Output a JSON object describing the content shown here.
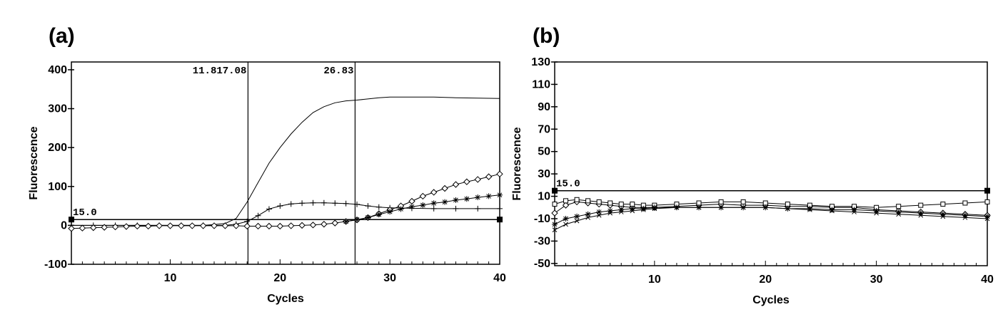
{
  "panels": {
    "a": {
      "label": "(a)"
    },
    "b": {
      "label": "(b)"
    }
  },
  "chart_data": [
    {
      "type": "line",
      "panel": "(a)",
      "xlabel": "Cycles",
      "ylabel": "Fluorescence",
      "xlim": [
        1,
        40
      ],
      "ylim": [
        -100,
        420
      ],
      "x_ticks": [
        10,
        20,
        30,
        40
      ],
      "y_ticks": [
        400,
        300,
        200,
        100,
        0,
        -100
      ],
      "y_tick_labels": [
        "400",
        "300",
        "200",
        "100",
        "0",
        "-100"
      ],
      "threshold": {
        "value": 15.0,
        "label": "15.0"
      },
      "ct_lines": [
        {
          "x": 17.08,
          "label": "11.817.08"
        },
        {
          "x": 26.83,
          "label": "26.83"
        }
      ],
      "series": [
        {
          "marker": "none",
          "x": [
            1,
            3,
            5,
            7,
            9,
            11,
            13,
            14,
            15,
            16,
            17,
            18,
            19,
            20,
            21,
            22,
            23,
            24,
            25,
            26,
            27,
            28,
            29,
            30,
            32,
            34,
            36,
            38,
            40
          ],
          "y": [
            0,
            0,
            0,
            0,
            0,
            0,
            0,
            2,
            5,
            18,
            60,
            110,
            160,
            200,
            235,
            265,
            290,
            305,
            315,
            320,
            322,
            325,
            328,
            330,
            330,
            330,
            328,
            327,
            326
          ]
        },
        {
          "marker": "plus",
          "x": [
            1,
            3,
            5,
            7,
            9,
            11,
            13,
            15,
            16,
            17,
            18,
            19,
            20,
            21,
            22,
            23,
            24,
            25,
            26,
            27,
            28,
            29,
            30,
            32,
            34,
            36,
            38,
            40
          ],
          "y": [
            0,
            0,
            0,
            0,
            0,
            0,
            0,
            0,
            3,
            10,
            25,
            42,
            50,
            55,
            57,
            58,
            58,
            57,
            56,
            54,
            50,
            47,
            45,
            44,
            43,
            43,
            43,
            43
          ]
        },
        {
          "marker": "diamond",
          "x": [
            1,
            2,
            3,
            4,
            5,
            6,
            7,
            8,
            9,
            10,
            11,
            12,
            13,
            14,
            15,
            16,
            17,
            18,
            19,
            20,
            21,
            22,
            23,
            24,
            25,
            26,
            27,
            28,
            29,
            30,
            31,
            32,
            33,
            34,
            35,
            36,
            37,
            38,
            39,
            40
          ],
          "y": [
            -8,
            -7,
            -6,
            -5,
            -4,
            -3,
            -2,
            -2,
            -1,
            -1,
            -1,
            -1,
            -1,
            -1,
            -1,
            -1,
            -2,
            -2,
            -2,
            -2,
            -1,
            0,
            1,
            3,
            6,
            10,
            14,
            20,
            30,
            40,
            50,
            62,
            75,
            85,
            95,
            105,
            112,
            118,
            125,
            132
          ]
        },
        {
          "marker": "star",
          "x": [
            26,
            27,
            28,
            29,
            30,
            31,
            32,
            33,
            34,
            35,
            36,
            37,
            38,
            39,
            40
          ],
          "y": [
            10,
            15,
            20,
            28,
            35,
            42,
            48,
            52,
            57,
            60,
            65,
            68,
            72,
            75,
            78
          ]
        }
      ]
    },
    {
      "type": "line",
      "panel": "(b)",
      "xlabel": "Cycles",
      "ylabel": "Fluorescence",
      "xlim": [
        1,
        40
      ],
      "ylim": [
        -52,
        130
      ],
      "x_ticks": [
        10,
        20,
        30,
        40
      ],
      "y_ticks": [
        130,
        110,
        90,
        70,
        50,
        30,
        10,
        -10,
        -30,
        -50
      ],
      "y_tick_labels": [
        "130",
        "110",
        "90",
        "70",
        "50",
        "30",
        "10",
        "-10",
        "-30",
        "-50"
      ],
      "threshold": {
        "value": 15.0,
        "label": "15.0"
      },
      "series": [
        {
          "marker": "diamond",
          "x": [
            1,
            2,
            3,
            4,
            5,
            6,
            7,
            8,
            9,
            10,
            12,
            14,
            16,
            18,
            20,
            22,
            24,
            26,
            28,
            30,
            32,
            34,
            36,
            38,
            40
          ],
          "y": [
            -5,
            2,
            5,
            4,
            3,
            2,
            1,
            0,
            0,
            0,
            1,
            2,
            3,
            2,
            2,
            1,
            1,
            0,
            0,
            -2,
            -3,
            -4,
            -5,
            -6,
            -7
          ]
        },
        {
          "marker": "square",
          "x": [
            1,
            2,
            3,
            4,
            5,
            6,
            7,
            8,
            9,
            10,
            12,
            14,
            16,
            18,
            20,
            22,
            24,
            26,
            28,
            30,
            32,
            34,
            36,
            38,
            40
          ],
          "y": [
            3,
            6,
            7,
            6,
            5,
            4,
            3,
            3,
            2,
            2,
            3,
            4,
            5,
            5,
            4,
            3,
            2,
            1,
            1,
            0,
            1,
            2,
            3,
            4,
            5
          ]
        },
        {
          "marker": "star",
          "x": [
            1,
            2,
            3,
            4,
            5,
            6,
            7,
            8,
            9,
            10,
            12,
            14,
            16,
            18,
            20,
            22,
            24,
            26,
            28,
            30,
            32,
            34,
            36,
            38,
            40
          ],
          "y": [
            -15,
            -10,
            -8,
            -6,
            -4,
            -3,
            -2,
            -1,
            -1,
            0,
            0,
            0,
            0,
            0,
            0,
            -1,
            -1,
            -2,
            -2,
            -3,
            -4,
            -5,
            -6,
            -7,
            -8
          ]
        },
        {
          "marker": "cross",
          "x": [
            1,
            2,
            3,
            4,
            5,
            6,
            7,
            8,
            9,
            10,
            12,
            14,
            16,
            18,
            20,
            22,
            24,
            26,
            28,
            30,
            32,
            34,
            36,
            38,
            40
          ],
          "y": [
            -20,
            -15,
            -12,
            -9,
            -7,
            -5,
            -4,
            -3,
            -2,
            -1,
            0,
            0,
            0,
            0,
            0,
            -1,
            -2,
            -3,
            -4,
            -5,
            -6,
            -7,
            -8,
            -9,
            -10
          ]
        }
      ]
    }
  ]
}
